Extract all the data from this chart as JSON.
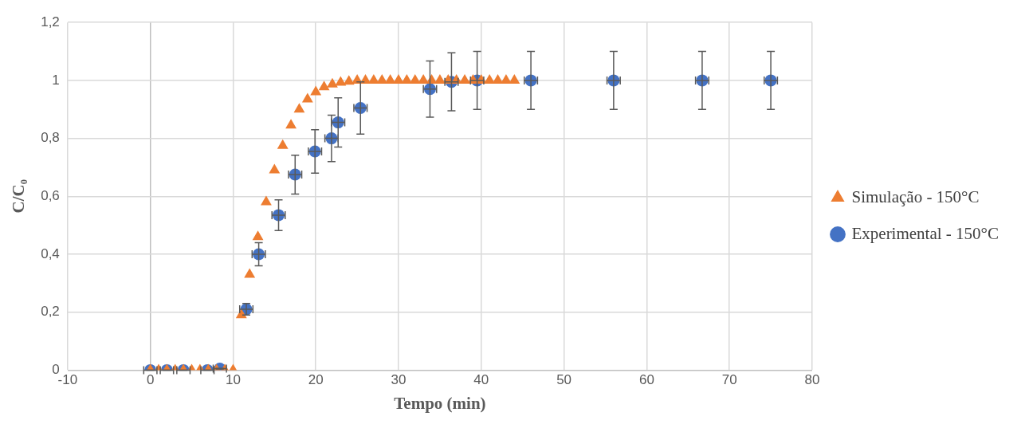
{
  "chart_data": {
    "type": "scatter",
    "xlabel": "Tempo (min)",
    "ylabel": "C/C₀",
    "xlim": [
      -10,
      80
    ],
    "xticks": [
      -10,
      0,
      10,
      20,
      30,
      40,
      50,
      60,
      70,
      80
    ],
    "ylim": [
      0,
      1.2
    ],
    "yticks": [
      {
        "value": 0,
        "label": "0"
      },
      {
        "value": 0.2,
        "label": "0,2"
      },
      {
        "value": 0.4,
        "label": "0,4"
      },
      {
        "value": 0.6,
        "label": "0,6"
      },
      {
        "value": 0.8,
        "label": "0,8"
      },
      {
        "value": 1,
        "label": "1"
      },
      {
        "value": 1.2,
        "label": "1,2"
      }
    ],
    "grid": true,
    "legend": "right",
    "series": [
      {
        "name": "Experimental - 150°C",
        "color": "#4472c4",
        "marker": "circle",
        "x": [
          0,
          2,
          4,
          6.9,
          8.4,
          11.6,
          13.1,
          15.5,
          17.5,
          19.9,
          21.9,
          22.7,
          25.4,
          33.8,
          36.4,
          39.5,
          46,
          56,
          66.7,
          75
        ],
        "values": [
          0,
          0,
          0,
          0,
          0.005,
          0.21,
          0.4,
          0.535,
          0.675,
          0.755,
          0.8,
          0.855,
          0.905,
          0.97,
          0.995,
          1,
          1,
          1,
          1,
          1
        ],
        "errors": [
          0,
          0,
          0,
          0,
          0.001,
          0.02,
          0.04,
          0.053,
          0.067,
          0.075,
          0.08,
          0.085,
          0.09,
          0.097,
          0.1,
          0.1,
          0.1,
          0.1,
          0.1,
          0.1
        ],
        "xerrors": [
          0.8,
          0.8,
          0.8,
          0.8,
          0.8,
          0.8,
          0.8,
          0.8,
          0.8,
          0.8,
          0.8,
          0.8,
          0.8,
          0.8,
          0.8,
          0.8,
          0.8,
          0.8,
          0.8,
          0.8
        ]
      },
      {
        "name": "Simulação - 150°C",
        "color": "#ed7d31",
        "marker": "triangle",
        "x": [
          0,
          1,
          2,
          3,
          4,
          5,
          6,
          7,
          8,
          9,
          10,
          11,
          12,
          13,
          14,
          15,
          16,
          17,
          18,
          19,
          20,
          21,
          22,
          23,
          24,
          25,
          26,
          27,
          28,
          29,
          30,
          31,
          32,
          33,
          34,
          35,
          36,
          37,
          38,
          39,
          40,
          41,
          42,
          43,
          44
        ],
        "values": [
          0,
          0,
          0,
          0,
          0,
          0,
          0,
          0,
          0,
          0,
          0,
          0.19,
          0.33,
          0.46,
          0.58,
          0.69,
          0.775,
          0.845,
          0.9,
          0.935,
          0.96,
          0.977,
          0.987,
          0.993,
          0.996,
          1,
          1,
          1,
          1,
          1,
          1,
          1,
          1,
          1,
          1,
          1,
          1,
          1,
          1,
          1,
          1,
          1,
          1,
          1,
          1
        ]
      }
    ]
  }
}
